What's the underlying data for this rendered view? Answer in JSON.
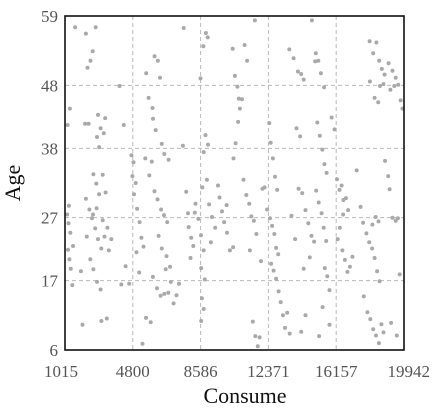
{
  "chart_data": {
    "type": "scatter",
    "xlabel": "Consume",
    "ylabel": "Age",
    "xlim": [
      1015,
      19942
    ],
    "ylim": [
      6,
      59
    ],
    "xticks": [
      1015,
      4800,
      8586,
      12371,
      16157,
      19942
    ],
    "yticks": [
      6,
      17,
      27,
      38,
      48,
      59
    ],
    "xtick_labels": [
      "1015",
      "4800",
      "8586",
      "12371",
      "16157",
      "19942"
    ],
    "ytick_labels": [
      "6",
      "17",
      "27",
      "38",
      "48",
      "59"
    ],
    "grid": true,
    "point_color": "#a9a9a9",
    "series": [
      {
        "points": [
          [
            1160,
            41.7
          ],
          [
            1290,
            44.3
          ],
          [
            1140,
            27.5
          ],
          [
            1210,
            26.1
          ],
          [
            1310,
            24.6
          ],
          [
            1180,
            21.9
          ],
          [
            1260,
            20.4
          ],
          [
            1340,
            18.9
          ],
          [
            1420,
            16.3
          ],
          [
            1230,
            28.9
          ],
          [
            1460,
            22.5
          ],
          [
            1580,
            57.2
          ],
          [
            1990,
            10.0
          ],
          [
            2130,
            41.9
          ],
          [
            2330,
            41.9
          ],
          [
            2270,
            50.8
          ],
          [
            2440,
            51.9
          ],
          [
            2560,
            53.4
          ],
          [
            2180,
            56.2
          ],
          [
            2730,
            57.2
          ],
          [
            2800,
            39.8
          ],
          [
            2920,
            38.2
          ],
          [
            3000,
            41.2
          ],
          [
            2860,
            43.3
          ],
          [
            3180,
            40.4
          ],
          [
            3260,
            42.8
          ],
          [
            2600,
            33.9
          ],
          [
            2760,
            32.4
          ],
          [
            2920,
            30.7
          ],
          [
            3120,
            33.8
          ],
          [
            3280,
            31.0
          ],
          [
            2520,
            26.9
          ],
          [
            2700,
            25.3
          ],
          [
            2860,
            23.6
          ],
          [
            3040,
            22.1
          ],
          [
            3220,
            24.0
          ],
          [
            2430,
            20.4
          ],
          [
            2600,
            18.8
          ],
          [
            2800,
            16.8
          ],
          [
            3000,
            15.6
          ],
          [
            2380,
            28.3
          ],
          [
            2580,
            27.5
          ],
          [
            2780,
            28.5
          ],
          [
            3120,
            26.6
          ],
          [
            3380,
            25.4
          ],
          [
            3600,
            23.6
          ],
          [
            3460,
            21.8
          ],
          [
            2230,
            24.0
          ],
          [
            2180,
            30.0
          ],
          [
            1900,
            18.5
          ],
          [
            3050,
            10.6
          ],
          [
            3350,
            11.0
          ],
          [
            4060,
            47.9
          ],
          [
            4300,
            41.7
          ],
          [
            4400,
            19.3
          ],
          [
            4160,
            16.4
          ],
          [
            4600,
            16.5
          ],
          [
            4720,
            36.9
          ],
          [
            4780,
            33.6
          ],
          [
            4870,
            30.7
          ],
          [
            4840,
            35.8
          ],
          [
            4960,
            32.5
          ],
          [
            5040,
            28.4
          ],
          [
            5180,
            26.3
          ],
          [
            5000,
            21.5
          ],
          [
            5280,
            23.8
          ],
          [
            5400,
            22.4
          ],
          [
            5160,
            18.3
          ],
          [
            5550,
            49.9
          ],
          [
            5680,
            46.0
          ],
          [
            5900,
            44.4
          ],
          [
            5930,
            42.7
          ],
          [
            6080,
            40.9
          ],
          [
            6020,
            52.6
          ],
          [
            6200,
            51.9
          ],
          [
            6320,
            49.2
          ],
          [
            6420,
            38.7
          ],
          [
            5500,
            36.4
          ],
          [
            5720,
            33.7
          ],
          [
            5860,
            35.9
          ],
          [
            6010,
            31.2
          ],
          [
            6180,
            29.9
          ],
          [
            6380,
            28.3
          ],
          [
            6540,
            27.4
          ],
          [
            6720,
            26.3
          ],
          [
            6560,
            37.1
          ],
          [
            6800,
            36.2
          ],
          [
            6240,
            24.1
          ],
          [
            6420,
            22.1
          ],
          [
            6680,
            20.9
          ],
          [
            5920,
            17.6
          ],
          [
            6150,
            15.8
          ],
          [
            6350,
            14.6
          ],
          [
            6560,
            14.9
          ],
          [
            6780,
            15.1
          ],
          [
            6920,
            16.8
          ],
          [
            7080,
            13.4
          ],
          [
            7240,
            14.7
          ],
          [
            7380,
            16.5
          ],
          [
            6640,
            18.8
          ],
          [
            6880,
            19.2
          ],
          [
            5540,
            11.1
          ],
          [
            5800,
            10.4
          ],
          [
            5340,
            7.0
          ],
          [
            7640,
            57.1
          ],
          [
            7600,
            38.4
          ],
          [
            7780,
            31.1
          ],
          [
            7880,
            27.7
          ],
          [
            7920,
            25.5
          ],
          [
            8060,
            23.8
          ],
          [
            8180,
            22.5
          ],
          [
            8020,
            20.6
          ],
          [
            8260,
            27.8
          ],
          [
            8300,
            29.2
          ],
          [
            8460,
            26.8
          ],
          [
            8610,
            24.2
          ],
          [
            8760,
            21.8
          ],
          [
            8880,
            56.3
          ],
          [
            8980,
            55.6
          ],
          [
            8740,
            54.2
          ],
          [
            8580,
            49.1
          ],
          [
            8860,
            40.1
          ],
          [
            9000,
            38.6
          ],
          [
            8760,
            37.4
          ],
          [
            8940,
            33.0
          ],
          [
            8680,
            31.8
          ],
          [
            9060,
            29.1
          ],
          [
            9220,
            27.1
          ],
          [
            9400,
            25.4
          ],
          [
            9160,
            23.1
          ],
          [
            8620,
            19.0
          ],
          [
            8820,
            17.2
          ],
          [
            8660,
            14.2
          ],
          [
            8760,
            12.5
          ],
          [
            8620,
            10.6
          ],
          [
            9560,
            32.1
          ],
          [
            9640,
            30.2
          ],
          [
            9780,
            28.0
          ],
          [
            9900,
            26.3
          ],
          [
            10060,
            24.6
          ],
          [
            10220,
            21.8
          ],
          [
            10380,
            53.8
          ],
          [
            10500,
            49.5
          ],
          [
            10640,
            47.8
          ],
          [
            10720,
            45.9
          ],
          [
            10900,
            45.8
          ],
          [
            10780,
            44.3
          ],
          [
            10420,
            36.4
          ],
          [
            10540,
            38.8
          ],
          [
            10680,
            42.2
          ],
          [
            10040,
            29.0
          ],
          [
            10400,
            22.3
          ],
          [
            11040,
            54.4
          ],
          [
            11180,
            51.9
          ],
          [
            10980,
            33.0
          ],
          [
            11140,
            30.6
          ],
          [
            11300,
            29.2
          ],
          [
            11420,
            27.2
          ],
          [
            11560,
            26.5
          ],
          [
            11700,
            24.4
          ],
          [
            11340,
            21.8
          ],
          [
            11500,
            10.5
          ],
          [
            11640,
            8.2
          ],
          [
            11780,
            6.6
          ],
          [
            11880,
            8.0
          ],
          [
            11960,
            20.1
          ],
          [
            12040,
            31.6
          ],
          [
            12160,
            31.8
          ],
          [
            11620,
            58.3
          ],
          [
            12300,
            28.3
          ],
          [
            12420,
            42.0
          ],
          [
            12500,
            38.9
          ],
          [
            12620,
            36.4
          ],
          [
            12740,
            33.5
          ],
          [
            12860,
            31.4
          ],
          [
            12460,
            26.9
          ],
          [
            12580,
            25.7
          ],
          [
            12700,
            24.4
          ],
          [
            12800,
            22.2
          ],
          [
            12920,
            21.2
          ],
          [
            12520,
            19.7
          ],
          [
            12660,
            18.6
          ],
          [
            12800,
            17.3
          ],
          [
            12940,
            15.3
          ],
          [
            13060,
            13.6
          ],
          [
            13180,
            11.5
          ],
          [
            13300,
            9.5
          ],
          [
            13420,
            11.9
          ],
          [
            13560,
            8.6
          ],
          [
            13660,
            27.3
          ],
          [
            13860,
            23.6
          ],
          [
            13540,
            53.7
          ],
          [
            13780,
            52.3
          ],
          [
            14020,
            50.2
          ],
          [
            14200,
            49.8
          ],
          [
            14340,
            48.9
          ],
          [
            13940,
            41.2
          ],
          [
            14140,
            39.9
          ],
          [
            14060,
            31.6
          ],
          [
            14260,
            30.9
          ],
          [
            14440,
            28.2
          ],
          [
            14600,
            26.1
          ],
          [
            14780,
            24.1
          ],
          [
            14920,
            23.2
          ],
          [
            14680,
            20.7
          ],
          [
            14340,
            18.9
          ],
          [
            14200,
            8.9
          ],
          [
            14440,
            11.5
          ],
          [
            14800,
            58.3
          ],
          [
            15020,
            53.1
          ],
          [
            14980,
            51.8
          ],
          [
            15160,
            51.9
          ],
          [
            15300,
            49.9
          ],
          [
            15480,
            47.7
          ],
          [
            15100,
            42.1
          ],
          [
            15240,
            40.0
          ],
          [
            15380,
            37.8
          ],
          [
            15500,
            35.5
          ],
          [
            15620,
            34.1
          ],
          [
            15040,
            31.3
          ],
          [
            15180,
            29.4
          ],
          [
            15340,
            27.7
          ],
          [
            15460,
            25.4
          ],
          [
            15600,
            23.3
          ],
          [
            15520,
            19.0
          ],
          [
            15660,
            17.7
          ],
          [
            15780,
            15.5
          ],
          [
            15400,
            12.8
          ],
          [
            15780,
            10.0
          ],
          [
            15200,
            8.2
          ],
          [
            15900,
            42.9
          ],
          [
            16060,
            41.0
          ],
          [
            16200,
            33.1
          ],
          [
            16340,
            31.4
          ],
          [
            16460,
            32.1
          ],
          [
            16560,
            29.8
          ],
          [
            16700,
            30.1
          ],
          [
            16820,
            28.2
          ],
          [
            16540,
            27.5
          ],
          [
            16360,
            25.4
          ],
          [
            16240,
            23.6
          ],
          [
            16500,
            21.8
          ],
          [
            16640,
            20.3
          ],
          [
            16780,
            18.4
          ],
          [
            16920,
            19.2
          ],
          [
            17060,
            20.8
          ],
          [
            17300,
            34.5
          ],
          [
            17520,
            28.7
          ],
          [
            17660,
            26.2
          ],
          [
            17840,
            24.5
          ],
          [
            18000,
            23.1
          ],
          [
            18160,
            22.1
          ],
          [
            18300,
            20.6
          ],
          [
            18440,
            18.5
          ],
          [
            18580,
            16.9
          ],
          [
            18180,
            25.9
          ],
          [
            18360,
            27.1
          ],
          [
            18520,
            26.4
          ],
          [
            17700,
            14.5
          ],
          [
            17900,
            12.0
          ],
          [
            18060,
            10.9
          ],
          [
            18220,
            9.3
          ],
          [
            18380,
            8.3
          ],
          [
            18540,
            7.1
          ],
          [
            18680,
            10.1
          ],
          [
            18800,
            8.8
          ],
          [
            18020,
            55.0
          ],
          [
            18220,
            53.1
          ],
          [
            18400,
            54.8
          ],
          [
            18560,
            51.9
          ],
          [
            18700,
            50.6
          ],
          [
            18860,
            49.7
          ],
          [
            18600,
            47.9
          ],
          [
            18800,
            48.2
          ],
          [
            18040,
            48.6
          ],
          [
            18300,
            46.0
          ],
          [
            18500,
            45.3
          ],
          [
            19080,
            51.5
          ],
          [
            19300,
            50.3
          ],
          [
            19480,
            49.2
          ],
          [
            19620,
            48.1
          ],
          [
            19760,
            45.6
          ],
          [
            19860,
            44.3
          ],
          [
            19180,
            47.3
          ],
          [
            19400,
            47.9
          ],
          [
            18880,
            36.0
          ],
          [
            19060,
            33.6
          ],
          [
            19140,
            31.5
          ],
          [
            19300,
            27.0
          ],
          [
            19480,
            26.5
          ],
          [
            19600,
            26.9
          ],
          [
            19700,
            18.0
          ],
          [
            19540,
            8.3
          ],
          [
            19220,
            10.3
          ]
        ]
      }
    ]
  }
}
